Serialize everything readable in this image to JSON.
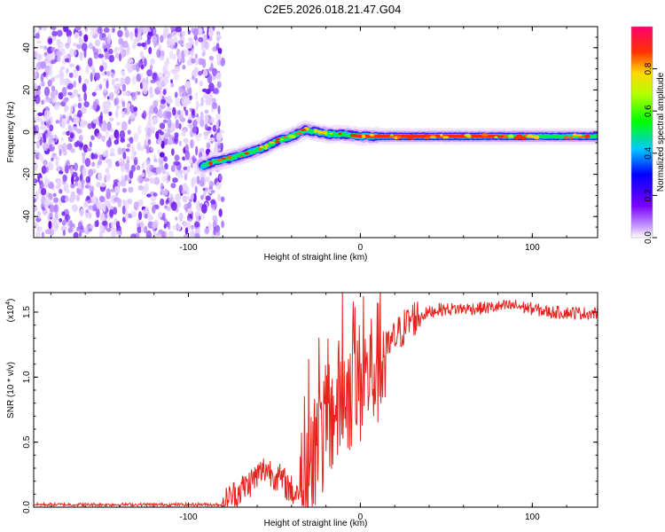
{
  "title": "C2E5.2026.018.21.47.G04",
  "chart_data": [
    {
      "type": "heatmap",
      "title": "C2E5.2026.018.21.47.G04",
      "xlabel": "Height of straight line (km)",
      "ylabel": "Frequency (Hz)",
      "xlim": [
        -190,
        138
      ],
      "ylim": [
        -50,
        50
      ],
      "xticks": [
        "-100",
        "0",
        "100"
      ],
      "yticks": [
        "-40",
        "-20",
        "0",
        "20",
        "40"
      ],
      "colorbar": {
        "label": "Normalized spectral amplitude",
        "range": [
          0,
          1
        ],
        "ticks": [
          "0.0",
          "0.2",
          "0.4",
          "0.6",
          "0.8"
        ]
      },
      "noise_region_x": [
        -190,
        -80
      ],
      "ridge": [
        {
          "x": -92,
          "f": -16
        },
        {
          "x": -85,
          "f": -14
        },
        {
          "x": -78,
          "f": -13
        },
        {
          "x": -70,
          "f": -11
        },
        {
          "x": -62,
          "f": -9
        },
        {
          "x": -55,
          "f": -7
        },
        {
          "x": -48,
          "f": -4
        },
        {
          "x": -40,
          "f": -2
        },
        {
          "x": -32,
          "f": 1
        },
        {
          "x": -25,
          "f": 0
        },
        {
          "x": -18,
          "f": -1
        },
        {
          "x": -10,
          "f": -1
        },
        {
          "x": 0,
          "f": -2
        },
        {
          "x": 10,
          "f": -2
        },
        {
          "x": 50,
          "f": -2
        },
        {
          "x": 100,
          "f": -2
        },
        {
          "x": 138,
          "f": -2
        }
      ]
    },
    {
      "type": "line",
      "xlabel": "Height of straight line (km)",
      "ylabel": "SNR (10 * v/v)",
      "y_scale_label": "(x10",
      "y_scale_exp": "4",
      "xlim": [
        -190,
        138
      ],
      "ylim": [
        0,
        1.65
      ],
      "xticks": [
        "-100",
        "0",
        "100"
      ],
      "yticks": [
        "0.0",
        "0.5",
        "1.0",
        "1.5"
      ],
      "series": [
        {
          "name": "SNR",
          "color": "#e8231e",
          "envelope": [
            {
              "x": -190,
              "y": 0.02
            },
            {
              "x": -80,
              "y": 0.02
            },
            {
              "x": -75,
              "y": 0.08
            },
            {
              "x": -65,
              "y": 0.18
            },
            {
              "x": -55,
              "y": 0.3
            },
            {
              "x": -45,
              "y": 0.2
            },
            {
              "x": -38,
              "y": 0.1
            },
            {
              "x": -30,
              "y": 0.25
            },
            {
              "x": -22,
              "y": 0.55
            },
            {
              "x": -15,
              "y": 0.75
            },
            {
              "x": -8,
              "y": 0.9
            },
            {
              "x": 0,
              "y": 0.95
            },
            {
              "x": 10,
              "y": 1.1
            },
            {
              "x": 20,
              "y": 1.3
            },
            {
              "x": 30,
              "y": 1.45
            },
            {
              "x": 45,
              "y": 1.52
            },
            {
              "x": 70,
              "y": 1.53
            },
            {
              "x": 90,
              "y": 1.55
            },
            {
              "x": 110,
              "y": 1.5
            },
            {
              "x": 138,
              "y": 1.49
            }
          ]
        }
      ]
    }
  ]
}
